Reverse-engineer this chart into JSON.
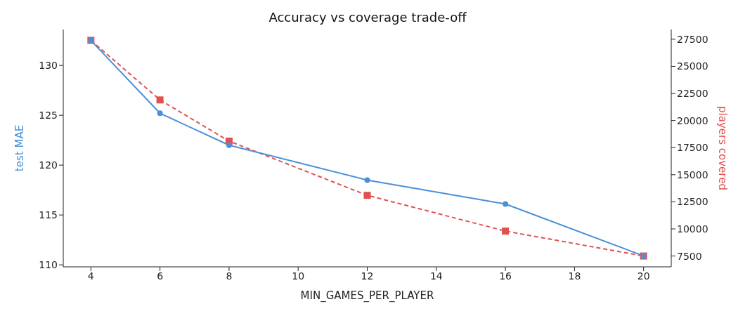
{
  "chart_data": {
    "type": "line",
    "title": "Accuracy vs coverage trade-off",
    "xlabel": "MIN_GAMES_PER_PLAYER",
    "ylabel": "test MAE",
    "y2label": "players covered",
    "x": [
      4,
      6,
      8,
      12,
      16,
      20
    ],
    "series": [
      {
        "color": "#4a90d9",
        "values": [
          132.5,
          125.2,
          122.0,
          118.5,
          116.1,
          110.9
        ],
        "marker": "circle",
        "line_style": "solid"
      },
      {
        "color": "#e05252",
        "values": [
          27400,
          21900,
          18100,
          13100,
          9800,
          7500
        ],
        "marker": "square",
        "line_style": "dashed",
        "axis": "y2"
      }
    ],
    "xlim": [
      3.2,
      20.8
    ],
    "xticks": [
      4,
      6,
      8,
      10,
      12,
      14,
      16,
      18,
      20
    ],
    "ylim": [
      109.8,
      133.6
    ],
    "yticks": [
      110,
      115,
      120,
      125,
      130
    ],
    "y2lim": [
      6500,
      28400
    ],
    "y2ticks": [
      7500,
      10000,
      12500,
      15000,
      17500,
      20000,
      22500,
      25000,
      27500
    ]
  }
}
